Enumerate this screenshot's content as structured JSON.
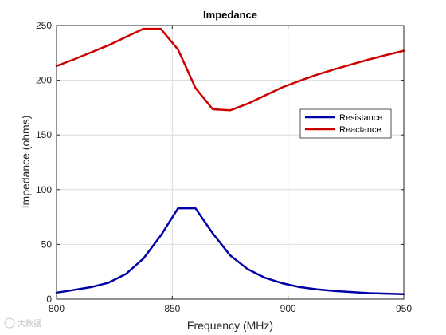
{
  "chart_data": {
    "type": "line",
    "title": "Impedance",
    "xlabel": "Frequency (MHz)",
    "ylabel": "Impedance (ohms)",
    "xlim": [
      800,
      950
    ],
    "ylim": [
      0,
      250
    ],
    "xticks": [
      800,
      850,
      900,
      950
    ],
    "yticks": [
      0,
      50,
      100,
      150,
      200,
      250
    ],
    "grid": true,
    "legend_position": "right",
    "series": [
      {
        "name": "Resistance",
        "color": "#0000a8",
        "x": [
          800,
          805,
          815,
          822.5,
          830,
          837.5,
          845,
          852.5,
          860,
          867.5,
          875,
          882.5,
          890,
          897.5,
          905,
          912.5,
          920,
          927.5,
          935,
          942.5,
          950
        ],
        "y": [
          6,
          7.5,
          11,
          15,
          23,
          37,
          58,
          83,
          83,
          60,
          40,
          27.5,
          19.5,
          14.5,
          11,
          9,
          7.5,
          6.5,
          5.5,
          5,
          4.5
        ]
      },
      {
        "name": "Reactance",
        "color": "#cc0000",
        "x": [
          800,
          807.5,
          815,
          822.5,
          830,
          837.5,
          845,
          852.5,
          860,
          867.5,
          875,
          882.5,
          890,
          897.5,
          905,
          912.5,
          920,
          927.5,
          935,
          942.5,
          950
        ],
        "y": [
          213,
          219,
          225.5,
          232,
          239.5,
          247,
          247,
          228,
          193,
          173.5,
          172.5,
          178.5,
          186,
          193.5,
          199.5,
          205,
          210,
          214.5,
          219,
          223,
          227
        ]
      }
    ]
  },
  "watermark": "大数据"
}
